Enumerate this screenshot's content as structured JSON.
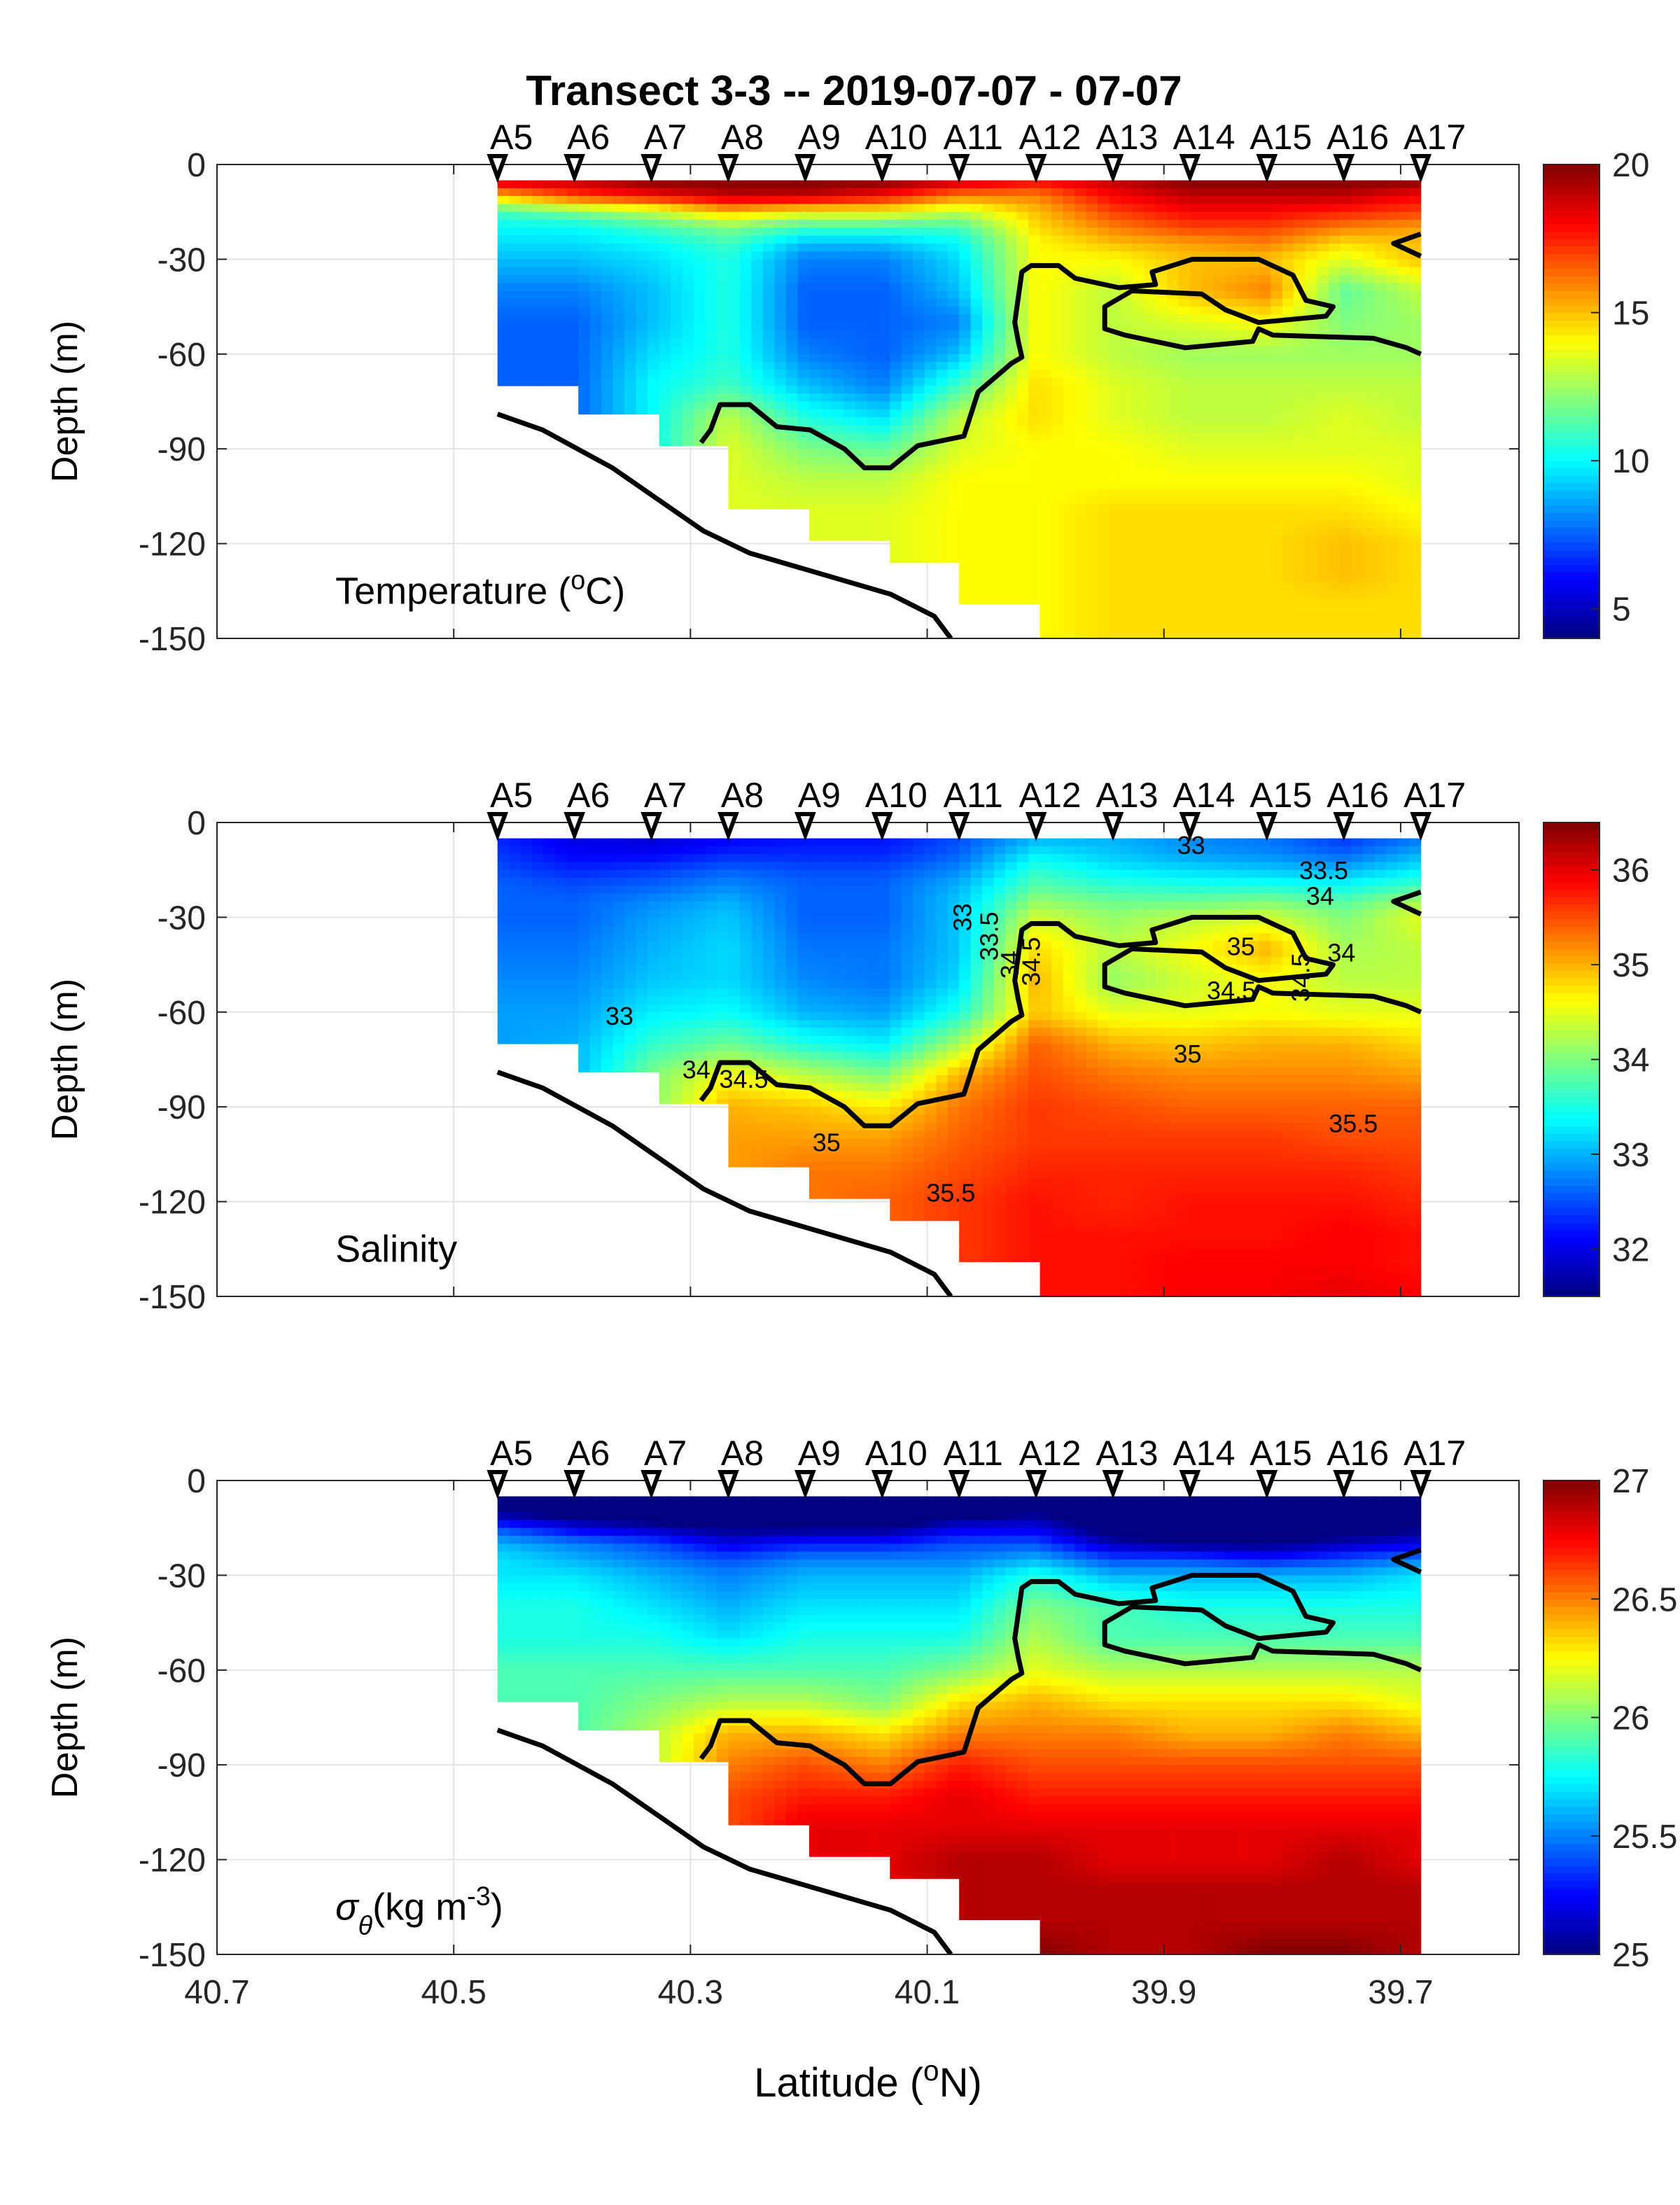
{
  "title": "Transect 3-3 -- 2019-07-07 - 07-07",
  "chart_data": {
    "type": "heatmap",
    "title": "Transect 3-3 -- 2019-07-07 - 07-07",
    "xlabel_parts": [
      {
        "t": "Latitude (",
        "s": ""
      },
      {
        "t": "o",
        "s": "sup"
      },
      {
        "t": "N)",
        "s": ""
      }
    ],
    "ylabel": "Depth (m)",
    "xlim": [
      40.7,
      39.6
    ],
    "ylim": [
      -150,
      0
    ],
    "xticks": [
      "40.7",
      "40.5",
      "40.3",
      "40.1",
      "39.9",
      "39.7"
    ],
    "yticks": [
      "0",
      "-30",
      "-60",
      "-90",
      "-120",
      "-150"
    ],
    "grid": true,
    "colormap": "jet",
    "stations": [
      {
        "name": "A5",
        "lat": 40.463,
        "bottom_depth": -70
      },
      {
        "name": "A6",
        "lat": 40.398,
        "bottom_depth": -79
      },
      {
        "name": "A7",
        "lat": 40.333,
        "bottom_depth": -89
      },
      {
        "name": "A8",
        "lat": 40.268,
        "bottom_depth": -109
      },
      {
        "name": "A9",
        "lat": 40.203,
        "bottom_depth": -119
      },
      {
        "name": "A10",
        "lat": 40.138,
        "bottom_depth": -126
      },
      {
        "name": "A11",
        "lat": 40.073,
        "bottom_depth": -139
      },
      {
        "name": "A12",
        "lat": 40.008,
        "bottom_depth": -150
      },
      {
        "name": "A13",
        "lat": 39.943,
        "bottom_depth": -150
      },
      {
        "name": "A14",
        "lat": 39.878,
        "bottom_depth": -150
      },
      {
        "name": "A15",
        "lat": 39.813,
        "bottom_depth": -150
      },
      {
        "name": "A16",
        "lat": 39.748,
        "bottom_depth": -150
      },
      {
        "name": "A17",
        "lat": 39.683,
        "bottom_depth": -150
      }
    ],
    "depth_levels": [
      -5,
      -10,
      -15,
      -20,
      -25,
      -30,
      -40,
      -50,
      -60,
      -70,
      -80,
      -90,
      -100,
      -110,
      -120,
      -130,
      -140,
      -150
    ],
    "bathymetry": [
      [
        40.463,
        -79
      ],
      [
        40.425,
        -84
      ],
      [
        40.366,
        -96
      ],
      [
        40.289,
        -116
      ],
      [
        40.25,
        -123
      ],
      [
        40.131,
        -136
      ],
      [
        40.094,
        -143
      ],
      [
        40.08,
        -150
      ]
    ],
    "bold_contours": [
      [
        [
          40.291,
          -88
        ],
        [
          40.283,
          -84
        ],
        [
          40.275,
          -76
        ],
        [
          40.25,
          -76
        ],
        [
          40.227,
          -83
        ],
        [
          40.199,
          -84
        ],
        [
          40.17,
          -90
        ],
        [
          40.153,
          -96
        ],
        [
          40.131,
          -96
        ],
        [
          40.108,
          -89
        ],
        [
          40.069,
          -86
        ],
        [
          40.057,
          -72
        ],
        [
          40.029,
          -63
        ],
        [
          40.02,
          -61
        ],
        [
          40.023,
          -56
        ],
        [
          40.026,
          -50
        ],
        [
          40.02,
          -34
        ],
        [
          40.012,
          -32
        ],
        [
          39.989,
          -32
        ],
        [
          39.975,
          -36
        ],
        [
          39.938,
          -39
        ],
        [
          39.907,
          -38
        ],
        [
          39.91,
          -34
        ],
        [
          39.876,
          -30
        ],
        [
          39.82,
          -30
        ],
        [
          39.791,
          -35
        ],
        [
          39.78,
          -43
        ],
        [
          39.757,
          -45
        ],
        [
          39.763,
          -48
        ],
        [
          39.82,
          -50
        ],
        [
          39.848,
          -46
        ],
        [
          39.868,
          -41
        ],
        [
          39.927,
          -40
        ],
        [
          39.95,
          -45
        ],
        [
          39.95,
          -52
        ],
        [
          39.933,
          -54
        ],
        [
          39.882,
          -58
        ],
        [
          39.825,
          -56
        ],
        [
          39.82,
          -52
        ],
        [
          39.808,
          -54
        ],
        [
          39.723,
          -55
        ],
        [
          39.695,
          -58
        ],
        [
          39.683,
          -60
        ]
      ],
      [
        [
          39.683,
          -22
        ],
        [
          39.706,
          -25
        ],
        [
          39.683,
          -29
        ]
      ]
    ],
    "panels": [
      {
        "label_parts": [
          {
            "t": "Temperature (",
            "s": ""
          },
          {
            "t": "o",
            "s": "sup"
          },
          {
            "t": "C)",
            "s": ""
          }
        ],
        "colorbar": {
          "min": 4,
          "max": 20,
          "ticks": [
            "5",
            "10",
            "15",
            "20"
          ]
        },
        "profiles": [
          [
            19,
            15,
            11,
            10,
            9.5,
            9,
            8,
            7.5,
            7.5,
            7.5
          ],
          [
            19,
            17,
            12,
            10,
            9.5,
            9,
            8,
            7.5,
            7.5,
            7.5
          ],
          [
            20,
            18,
            13,
            11,
            10,
            9.5,
            9,
            9,
            9.5,
            10,
            10
          ],
          [
            20,
            19,
            15,
            12,
            11,
            10.5,
            10.5,
            10.5,
            10.5,
            11,
            13,
            13.5,
            13.5
          ],
          [
            20,
            19,
            14,
            11,
            9,
            8,
            7.5,
            7.5,
            8,
            9,
            10.5,
            12,
            13,
            13.5
          ],
          [
            20,
            18,
            14,
            11,
            9,
            8,
            7.5,
            7.5,
            7.5,
            8,
            9.5,
            11.5,
            13,
            13.5,
            13.5
          ],
          [
            19,
            16,
            13,
            11,
            10,
            9.5,
            9,
            8,
            9,
            11,
            13,
            13.5,
            14,
            14,
            14,
            14
          ],
          [
            18,
            16,
            15,
            14.5,
            14,
            14,
            14,
            14,
            14,
            14.5,
            14.5,
            14,
            14,
            14,
            14,
            14,
            14,
            14
          ],
          [
            19,
            18,
            17,
            16,
            15,
            14,
            13,
            13,
            13,
            13.5,
            13.5,
            14,
            14,
            14.5,
            14.5,
            14.5,
            14.5,
            14.5
          ],
          [
            20,
            19,
            18,
            17,
            15.5,
            15,
            15,
            13.5,
            12.5,
            13,
            13,
            13.5,
            14,
            14.5,
            14.5,
            14.5,
            14.5,
            14.5
          ],
          [
            20,
            19,
            18,
            17,
            16,
            15,
            16,
            14,
            12.5,
            13,
            13,
            13.5,
            14,
            14.5,
            14.5,
            14.5,
            14.5,
            14.5
          ],
          [
            20,
            19,
            17.5,
            16,
            14.5,
            13.5,
            11.5,
            12,
            12.5,
            13,
            13.5,
            13.5,
            14,
            14.5,
            15,
            15,
            14.5,
            14.5
          ],
          [
            20,
            18,
            17,
            15.5,
            15,
            15,
            13,
            12.5,
            12.5,
            13,
            13,
            13.5,
            13.5,
            14,
            14.5,
            14.5,
            14.5,
            14.5
          ]
        ],
        "contour_labels": []
      },
      {
        "label_parts": [
          {
            "t": "Salinity",
            "s": ""
          }
        ],
        "colorbar": {
          "min": 31.5,
          "max": 36.5,
          "ticks": [
            "32",
            "33",
            "34",
            "35",
            "36"
          ]
        },
        "profiles": [
          [
            32.3,
            32.4,
            32.5,
            32.6,
            32.6,
            32.6,
            32.7,
            32.8,
            32.9,
            32.9
          ],
          [
            32.0,
            32.1,
            32.3,
            32.5,
            32.6,
            32.6,
            32.7,
            32.8,
            32.9,
            33.0
          ],
          [
            31.9,
            32.1,
            32.4,
            32.6,
            32.8,
            32.9,
            33.0,
            33.1,
            33.3,
            33.6,
            34.0
          ],
          [
            32.1,
            32.3,
            32.6,
            32.8,
            33.0,
            33.1,
            33.2,
            33.2,
            33.4,
            33.9,
            34.6,
            35.0,
            35.1
          ],
          [
            32.2,
            32.3,
            32.5,
            32.6,
            32.6,
            32.6,
            32.7,
            32.8,
            33.0,
            33.5,
            34.3,
            34.9,
            35.1,
            35.3
          ],
          [
            32.2,
            32.3,
            32.5,
            32.6,
            32.6,
            32.6,
            32.7,
            32.7,
            32.9,
            33.3,
            34.0,
            34.7,
            35.1,
            35.3,
            35.4
          ],
          [
            32.5,
            32.6,
            32.8,
            33.0,
            33.1,
            33.1,
            33.1,
            33.2,
            33.5,
            34.2,
            35.0,
            35.3,
            35.4,
            35.5,
            35.6,
            35.6
          ],
          [
            33.0,
            33.3,
            33.6,
            33.8,
            34.1,
            34.4,
            34.8,
            35.0,
            34.9,
            35.4,
            35.5,
            35.6,
            35.6,
            35.7,
            35.8,
            35.8,
            35.8,
            35.8
          ],
          [
            33.0,
            33.1,
            33.3,
            33.6,
            33.9,
            34.1,
            34.3,
            34.1,
            34.5,
            35.0,
            35.3,
            35.5,
            35.6,
            35.7,
            35.7,
            35.8,
            35.8,
            35.8
          ],
          [
            32.8,
            32.9,
            33.2,
            33.5,
            33.9,
            34.3,
            34.6,
            34.4,
            34.5,
            34.9,
            35.2,
            35.4,
            35.6,
            35.7,
            35.8,
            35.8,
            35.9,
            35.9
          ],
          [
            32.7,
            32.8,
            33.1,
            33.5,
            34.0,
            34.4,
            35.0,
            34.6,
            34.6,
            35.0,
            35.2,
            35.4,
            35.6,
            35.7,
            35.8,
            35.8,
            35.9,
            35.9
          ],
          [
            32.4,
            32.6,
            33.0,
            33.4,
            33.8,
            34.0,
            34.2,
            34.3,
            34.5,
            35.0,
            35.2,
            35.4,
            35.5,
            35.7,
            35.8,
            35.9,
            35.9,
            36.0
          ],
          [
            32.7,
            33.0,
            33.3,
            33.7,
            34.2,
            34.5,
            34.3,
            34.3,
            34.5,
            34.8,
            35.1,
            35.4,
            35.5,
            35.6,
            35.7,
            35.8,
            35.8,
            35.9
          ]
        ],
        "contour_labels": [
          {
            "text": "33",
            "lat": 39.877,
            "depth": -10
          },
          {
            "text": "33.5",
            "lat": 39.765,
            "depth": -18
          },
          {
            "text": "34",
            "lat": 39.768,
            "depth": -26
          },
          {
            "text": "35",
            "lat": 39.835,
            "depth": -42
          },
          {
            "text": "34",
            "lat": 39.75,
            "depth": -44
          },
          {
            "text": "34.5",
            "lat": 39.777,
            "depth": -49
          },
          {
            "text": "34.5",
            "lat": 39.843,
            "depth": -56
          },
          {
            "text": "35",
            "lat": 39.88,
            "depth": -76
          },
          {
            "text": "35.5",
            "lat": 39.74,
            "depth": -98
          },
          {
            "text": "35",
            "lat": 40.185,
            "depth": -104
          },
          {
            "text": "35.5",
            "lat": 40.08,
            "depth": -120
          },
          {
            "text": "34.5",
            "lat": 40.255,
            "depth": -84
          },
          {
            "text": "34",
            "lat": 40.295,
            "depth": -81
          },
          {
            "text": "33",
            "lat": 40.36,
            "depth": -64
          },
          {
            "text": "33",
            "lat": 40.058,
            "depth": -30
          },
          {
            "text": "33.5",
            "lat": 40.045,
            "depth": -36
          },
          {
            "text": "34",
            "lat": 40.044,
            "depth": -45
          },
          {
            "text": "34.5",
            "lat": 40.025,
            "depth": -44
          }
        ]
      },
      {
        "label_parts": [
          {
            "t": "σ",
            "s": ""
          },
          {
            "t": "θ",
            "s": "sub"
          },
          {
            "t": "(kg m",
            "s": ""
          },
          {
            "t": "-3",
            "s": "sup"
          },
          {
            "t": ")",
            "s": ""
          }
        ],
        "colorbar": {
          "min": 25,
          "max": 27,
          "ticks": [
            "25",
            "25.5",
            "26",
            "26.5",
            "27"
          ]
        },
        "profiles": [
          [
            24.8,
            25.0,
            25.4,
            25.6,
            25.7,
            25.7,
            25.8,
            25.8,
            25.9,
            25.9
          ],
          [
            24.8,
            24.9,
            25.2,
            25.5,
            25.6,
            25.7,
            25.8,
            25.8,
            25.9,
            25.9
          ],
          [
            24.7,
            24.8,
            25.1,
            25.4,
            25.5,
            25.6,
            25.7,
            25.8,
            25.9,
            26.0,
            26.1
          ],
          [
            24.6,
            24.7,
            25.0,
            25.2,
            25.4,
            25.5,
            25.6,
            25.7,
            25.9,
            26.1,
            26.4,
            26.5,
            26.6
          ],
          [
            24.6,
            24.7,
            25.0,
            25.3,
            25.5,
            25.6,
            25.7,
            25.8,
            25.9,
            26.1,
            26.4,
            26.6,
            26.7,
            26.8
          ],
          [
            24.6,
            24.7,
            25.0,
            25.3,
            25.5,
            25.6,
            25.7,
            25.8,
            25.9,
            26.0,
            26.3,
            26.5,
            26.7,
            26.8,
            26.8
          ],
          [
            24.7,
            24.9,
            25.2,
            25.4,
            25.5,
            25.6,
            25.7,
            25.8,
            26.0,
            26.3,
            26.5,
            26.7,
            26.8,
            26.8,
            26.9,
            26.9
          ],
          [
            24.8,
            25.0,
            25.2,
            25.4,
            25.6,
            25.8,
            26.0,
            26.1,
            26.2,
            26.4,
            26.5,
            26.6,
            26.7,
            26.8,
            26.9,
            26.9,
            26.9,
            27.0
          ],
          [
            24.7,
            24.8,
            24.9,
            25.1,
            25.4,
            25.6,
            25.9,
            25.9,
            26.1,
            26.3,
            26.5,
            26.6,
            26.7,
            26.8,
            26.8,
            26.9,
            26.9,
            26.9
          ],
          [
            24.6,
            24.7,
            24.8,
            25.0,
            25.4,
            25.6,
            25.8,
            25.9,
            26.1,
            26.3,
            26.4,
            26.6,
            26.7,
            26.8,
            26.8,
            26.9,
            26.9,
            26.9
          ],
          [
            24.6,
            24.7,
            24.8,
            25.0,
            25.3,
            25.6,
            25.8,
            25.9,
            26.1,
            26.3,
            26.4,
            26.6,
            26.7,
            26.8,
            26.8,
            26.9,
            26.9,
            27.0
          ],
          [
            24.6,
            24.7,
            24.9,
            25.1,
            25.4,
            25.6,
            25.8,
            25.9,
            26.1,
            26.3,
            26.5,
            26.6,
            26.7,
            26.8,
            26.9,
            26.9,
            26.9,
            27.0
          ],
          [
            24.7,
            24.8,
            25.0,
            25.2,
            25.5,
            25.7,
            25.8,
            25.9,
            26.1,
            26.2,
            26.4,
            26.6,
            26.7,
            26.8,
            26.8,
            26.9,
            26.9,
            26.9
          ]
        ],
        "contour_labels": []
      }
    ]
  }
}
